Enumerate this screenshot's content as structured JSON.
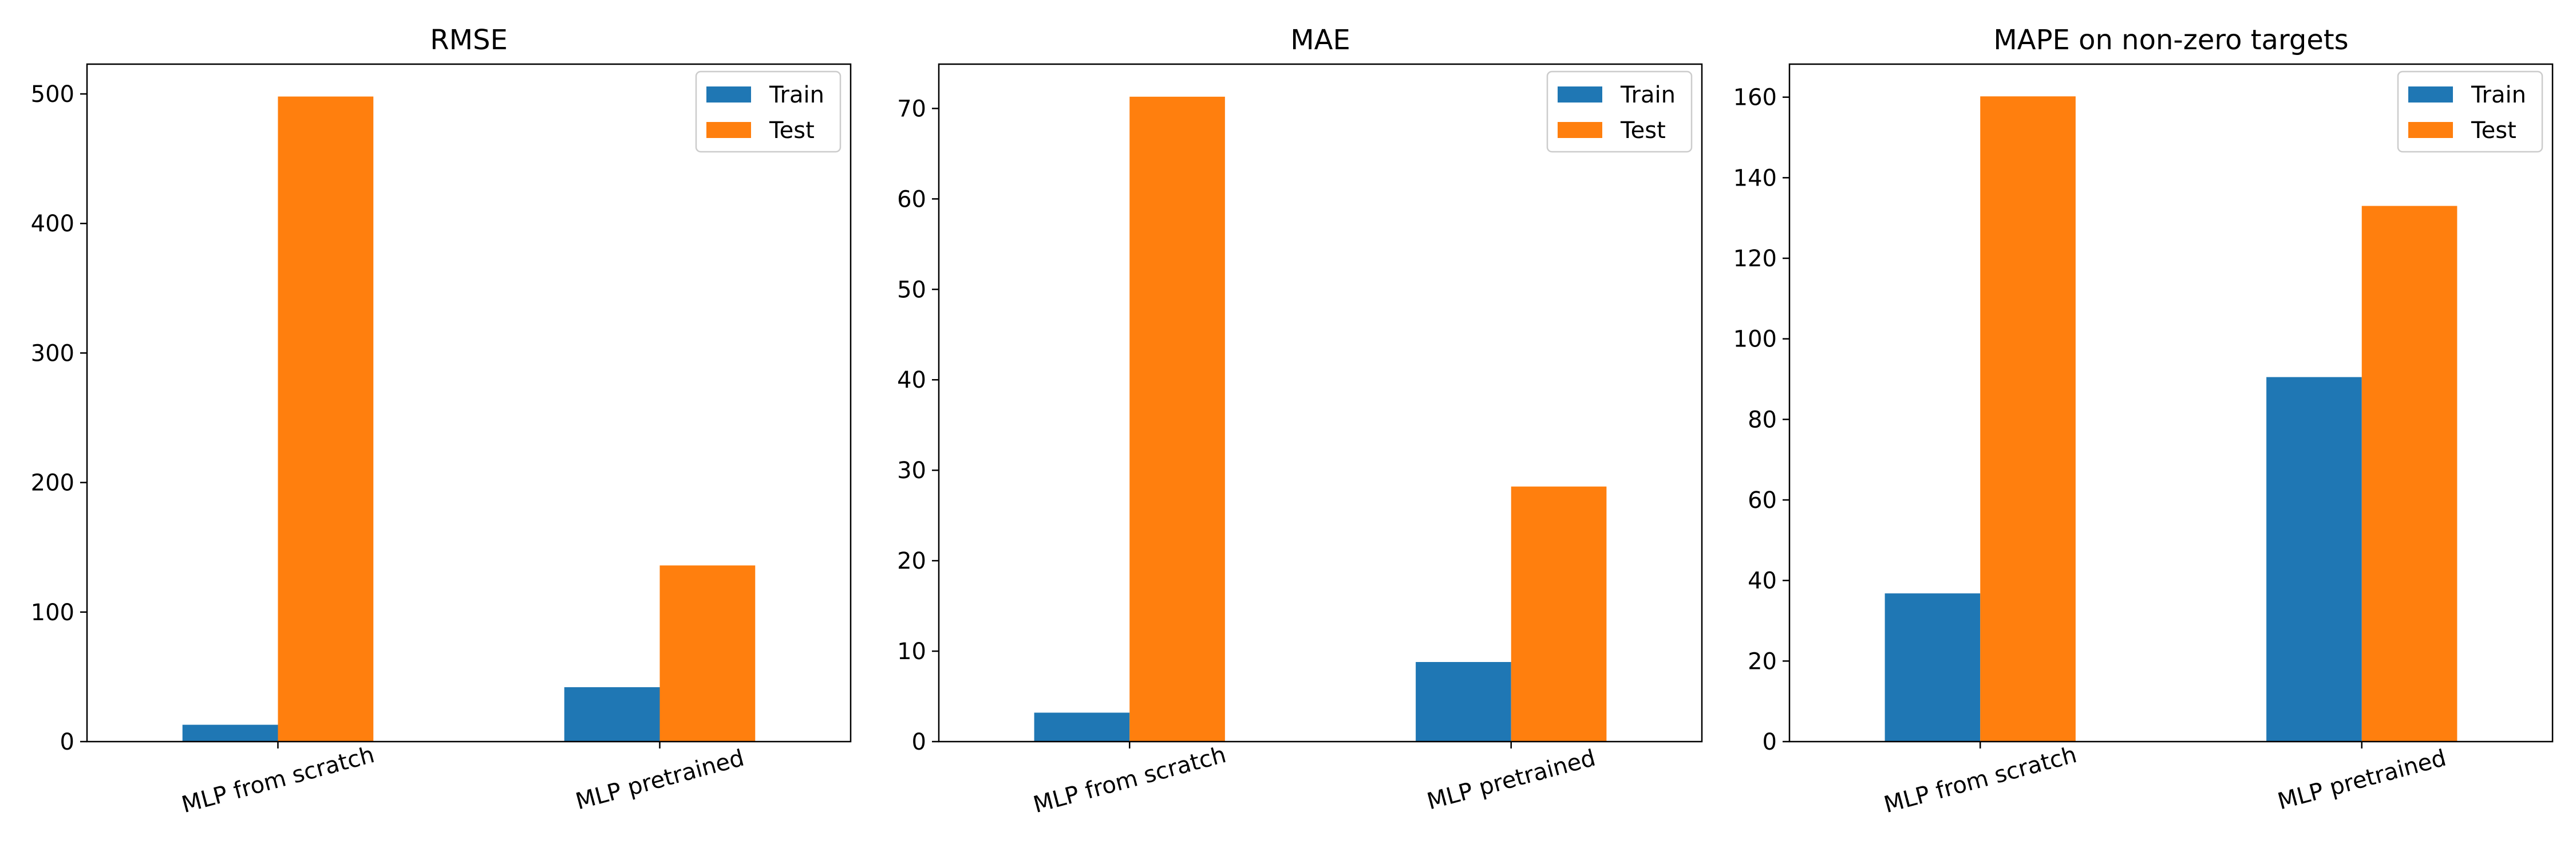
{
  "colors": {
    "train": "#1f77b4",
    "test": "#ff7f0e"
  },
  "chart_data": [
    {
      "type": "bar",
      "title": "RMSE",
      "categories": [
        "MLP from scratch",
        "MLP pretrained"
      ],
      "series": [
        {
          "name": "Train",
          "values": [
            13,
            42
          ]
        },
        {
          "name": "Test",
          "values": [
            498,
            136
          ]
        }
      ],
      "ylim": [
        0,
        523
      ],
      "yticks": [
        0,
        100,
        200,
        300,
        400,
        500
      ],
      "legend": "top-right",
      "grid": false
    },
    {
      "type": "bar",
      "title": "MAE",
      "categories": [
        "MLP from scratch",
        "MLP pretrained"
      ],
      "series": [
        {
          "name": "Train",
          "values": [
            3.2,
            8.8
          ]
        },
        {
          "name": "Test",
          "values": [
            71.3,
            28.2
          ]
        }
      ],
      "ylim": [
        0,
        74.9
      ],
      "yticks": [
        0,
        10,
        20,
        30,
        40,
        50,
        60,
        70
      ],
      "legend": "top-right",
      "grid": false
    },
    {
      "type": "bar",
      "title": "MAPE on non-zero targets",
      "categories": [
        "MLP from scratch",
        "MLP pretrained"
      ],
      "series": [
        {
          "name": "Train",
          "values": [
            36.8,
            90.5
          ]
        },
        {
          "name": "Test",
          "values": [
            160.2,
            133.0
          ]
        }
      ],
      "ylim": [
        0,
        168.2
      ],
      "yticks": [
        0,
        20,
        40,
        60,
        80,
        100,
        120,
        140,
        160
      ],
      "legend": "top-right",
      "grid": false
    }
  ]
}
